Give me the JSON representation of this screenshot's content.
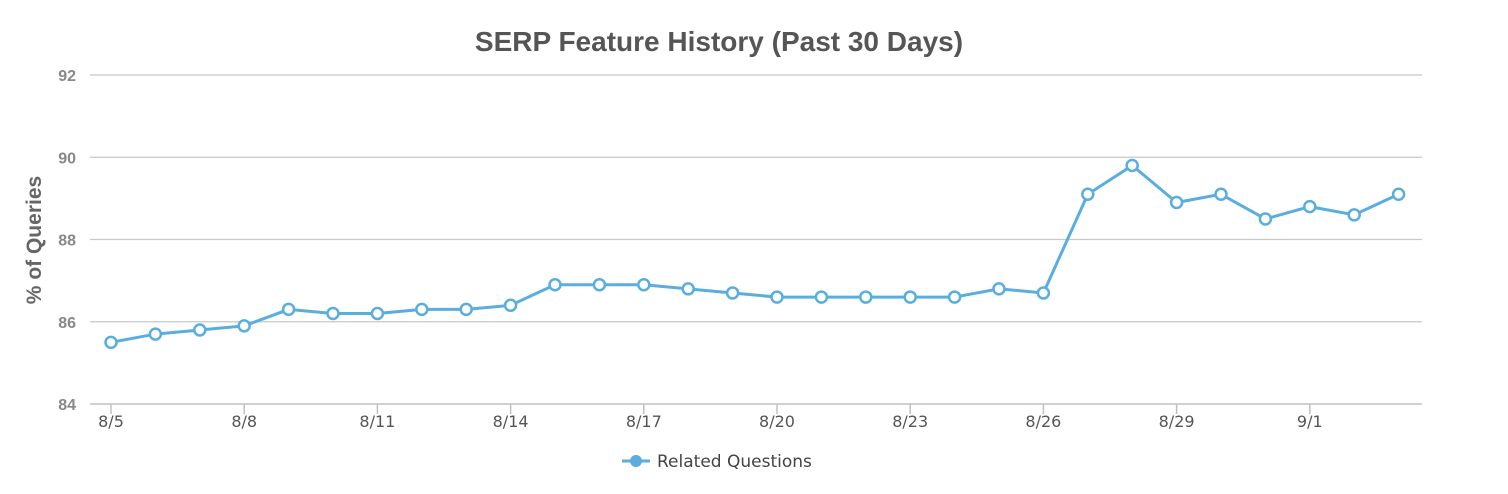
{
  "chart_data": {
    "type": "line",
    "title": "SERP Feature History (Past 30 Days)",
    "xlabel": "",
    "ylabel": "% of Queries",
    "ylim": [
      84,
      92
    ],
    "yticks": [
      84,
      86,
      88,
      90,
      92
    ],
    "x": [
      "8/5",
      "8/6",
      "8/7",
      "8/8",
      "8/9",
      "8/10",
      "8/11",
      "8/12",
      "8/13",
      "8/14",
      "8/15",
      "8/16",
      "8/17",
      "8/18",
      "8/19",
      "8/20",
      "8/21",
      "8/22",
      "8/23",
      "8/24",
      "8/25",
      "8/26",
      "8/27",
      "8/28",
      "8/29",
      "8/30",
      "8/31",
      "9/1",
      "9/2",
      "9/3"
    ],
    "xtick_labels": [
      "8/5",
      "8/8",
      "8/11",
      "8/14",
      "8/17",
      "8/20",
      "8/23",
      "8/26",
      "8/29",
      "9/1"
    ],
    "series": [
      {
        "name": "Related Questions",
        "color": "#5aaedf",
        "values": [
          85.5,
          85.7,
          85.8,
          85.9,
          86.3,
          86.2,
          86.2,
          86.3,
          86.3,
          86.4,
          86.9,
          86.9,
          86.9,
          86.8,
          86.7,
          86.6,
          86.6,
          86.6,
          86.6,
          86.6,
          86.8,
          86.7,
          89.1,
          89.8,
          88.9,
          89.1,
          88.5,
          88.8,
          88.6,
          89.1
        ]
      }
    ],
    "grid": true,
    "legend": "bottom-center"
  }
}
